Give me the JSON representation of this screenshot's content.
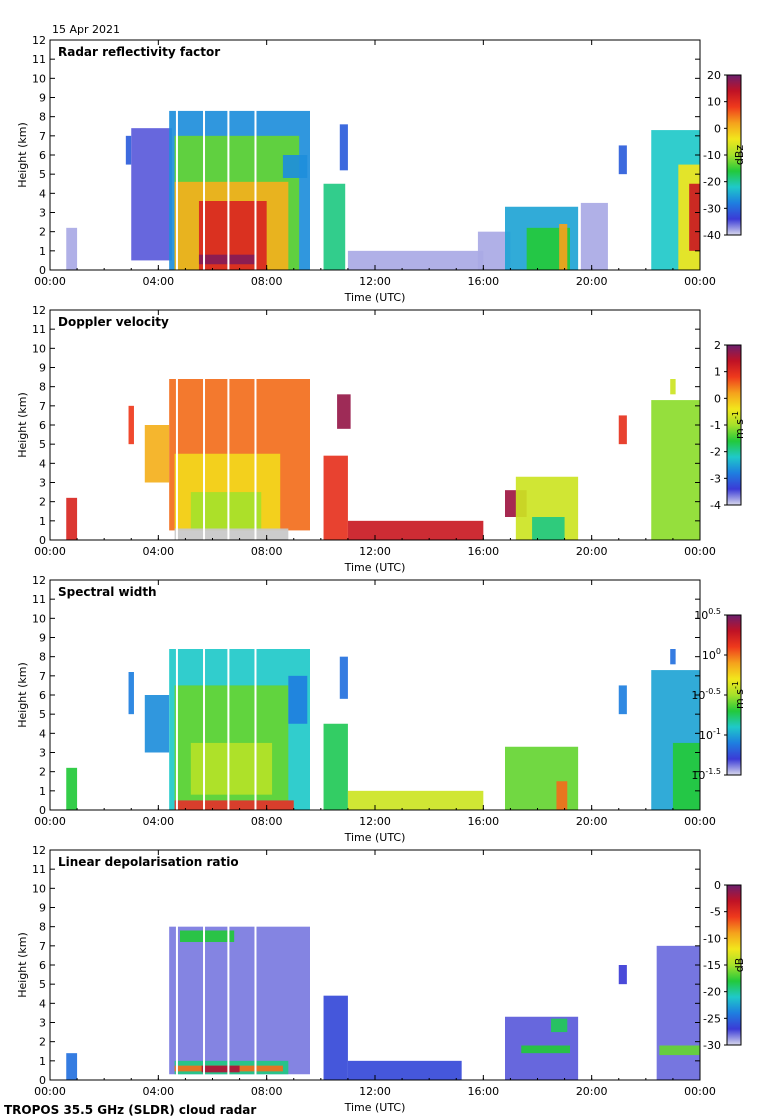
{
  "date_label": "15 Apr 2021",
  "footer": "TROPOS 35.5 GHz (SLDR) cloud radar",
  "colors": {
    "jet": [
      "#d8d8ec",
      "#3b3bd6",
      "#1e7fe0",
      "#1fc9c9",
      "#23c93a",
      "#a6e12a",
      "#f2e61c",
      "#f5a21c",
      "#ef3a1c",
      "#c01225",
      "#6b1f6d"
    ],
    "rain": "#c8c8c8"
  },
  "chart_data": [
    {
      "type": "heatmap",
      "title": "Radar reflectivity factor",
      "xlabel": "Time (UTC)",
      "ylabel": "Height (km)",
      "xlim": [
        0,
        24
      ],
      "ylim": [
        0,
        12
      ],
      "xticks": [
        "00:00",
        "04:00",
        "08:00",
        "12:00",
        "16:00",
        "20:00",
        "00:00"
      ],
      "yticks": [
        "0",
        "1",
        "2",
        "3",
        "4",
        "5",
        "6",
        "7",
        "8",
        "9",
        "10",
        "11",
        "12"
      ],
      "colorbar": {
        "label": "dBz",
        "ticks": [
          "20",
          "10",
          "0",
          "-10",
          "-20",
          "-30",
          "-40"
        ],
        "range": [
          -40,
          20
        ],
        "scale": "linear"
      },
      "regions": [
        {
          "t0": 0.6,
          "t1": 1.0,
          "h0": 0,
          "h1": 2.2,
          "v": 0.03
        },
        {
          "t0": 2.8,
          "t1": 3.0,
          "h0": 5.5,
          "h1": 7.0,
          "v": 0.15
        },
        {
          "t0": 3.0,
          "t1": 4.5,
          "h0": 0.5,
          "h1": 7.4,
          "v": 0.08
        },
        {
          "t0": 4.4,
          "t1": 9.6,
          "h0": 0,
          "h1": 8.3,
          "v": 0.22
        },
        {
          "t0": 4.6,
          "t1": 9.2,
          "h0": 0,
          "h1": 7.0,
          "v": 0.45
        },
        {
          "t0": 4.6,
          "t1": 8.8,
          "h0": 0,
          "h1": 4.6,
          "v": 0.68
        },
        {
          "t0": 5.5,
          "t1": 8.0,
          "h0": 0,
          "h1": 3.6,
          "v": 0.85
        },
        {
          "t0": 5.5,
          "t1": 7.6,
          "h0": 0.3,
          "h1": 0.8,
          "v": 0.97
        },
        {
          "t0": 8.6,
          "t1": 9.5,
          "h0": 4.8,
          "h1": 6.0,
          "v": 0.22
        },
        {
          "t0": 10.1,
          "t1": 10.9,
          "h0": 0,
          "h1": 4.5,
          "v": 0.35
        },
        {
          "t0": 10.7,
          "t1": 11.0,
          "h0": 5.2,
          "h1": 7.6,
          "v": 0.15
        },
        {
          "t0": 11.0,
          "t1": 16.0,
          "h0": 0,
          "h1": 1.0,
          "v": 0.03
        },
        {
          "t0": 15.8,
          "t1": 17.0,
          "h0": 0,
          "h1": 2.0,
          "v": 0.03
        },
        {
          "t0": 16.8,
          "t1": 19.5,
          "h0": 0,
          "h1": 3.3,
          "v": 0.25
        },
        {
          "t0": 17.6,
          "t1": 19.2,
          "h0": 0,
          "h1": 2.2,
          "v": 0.4
        },
        {
          "t0": 18.8,
          "t1": 19.1,
          "h0": 0,
          "h1": 2.4,
          "v": 0.7
        },
        {
          "t0": 19.6,
          "t1": 20.6,
          "h0": 0,
          "h1": 3.5,
          "v": 0.03
        },
        {
          "t0": 21.0,
          "t1": 21.3,
          "h0": 5.0,
          "h1": 6.5,
          "v": 0.15
        },
        {
          "t0": 22.2,
          "t1": 24.0,
          "h0": 0,
          "h1": 7.3,
          "v": 0.3
        },
        {
          "t0": 23.2,
          "t1": 24.0,
          "h0": 0,
          "h1": 5.5,
          "v": 0.6
        },
        {
          "t0": 23.6,
          "t1": 24.0,
          "h0": 1.0,
          "h1": 4.5,
          "v": 0.88
        }
      ]
    },
    {
      "type": "heatmap",
      "title": "Doppler velocity",
      "xlabel": "Time (UTC)",
      "ylabel": "Height (km)",
      "xlim": [
        0,
        24
      ],
      "ylim": [
        0,
        12
      ],
      "xticks": [
        "00:00",
        "04:00",
        "08:00",
        "12:00",
        "16:00",
        "20:00",
        "00:00"
      ],
      "yticks": [
        "0",
        "1",
        "2",
        "3",
        "4",
        "5",
        "6",
        "7",
        "8",
        "9",
        "10",
        "11",
        "12"
      ],
      "colorbar": {
        "label": "m s-1",
        "ticks": [
          "2",
          "1",
          "0",
          "-1",
          "-2",
          "-3",
          "-4"
        ],
        "range": [
          -4,
          2
        ],
        "scale": "linear"
      },
      "regions": [
        {
          "t0": 0.6,
          "t1": 1.0,
          "h0": 0,
          "h1": 2.2,
          "v": 0.85
        },
        {
          "t0": 2.9,
          "t1": 3.1,
          "h0": 5.0,
          "h1": 7.0,
          "v": 0.8
        },
        {
          "t0": 3.5,
          "t1": 4.4,
          "h0": 3.0,
          "h1": 6.0,
          "v": 0.68
        },
        {
          "t0": 4.4,
          "t1": 9.6,
          "h0": 0.5,
          "h1": 8.4,
          "v": 0.75
        },
        {
          "t0": 4.6,
          "t1": 8.5,
          "h0": 0.5,
          "h1": 4.5,
          "v": 0.62
        },
        {
          "t0": 5.2,
          "t1": 7.8,
          "h0": 0.5,
          "h1": 2.5,
          "v": 0.5
        },
        {
          "t0": 4.6,
          "t1": 8.8,
          "h0": 0,
          "h1": 0.6,
          "v": 0.0
        },
        {
          "t0": 10.1,
          "t1": 11.0,
          "h0": 0,
          "h1": 4.4,
          "v": 0.82
        },
        {
          "t0": 10.6,
          "t1": 11.1,
          "h0": 5.8,
          "h1": 7.6,
          "v": 0.95
        },
        {
          "t0": 11.0,
          "t1": 16.0,
          "h0": 0,
          "h1": 1.0,
          "v": 0.88
        },
        {
          "t0": 16.8,
          "t1": 17.6,
          "h0": 1.2,
          "h1": 2.6,
          "v": 0.94
        },
        {
          "t0": 17.2,
          "t1": 19.5,
          "h0": 0,
          "h1": 3.3,
          "v": 0.55
        },
        {
          "t0": 17.8,
          "t1": 19.0,
          "h0": 0,
          "h1": 1.2,
          "v": 0.35
        },
        {
          "t0": 21.0,
          "t1": 21.3,
          "h0": 5.0,
          "h1": 6.5,
          "v": 0.82
        },
        {
          "t0": 22.2,
          "t1": 24.0,
          "h0": 0,
          "h1": 7.3,
          "v": 0.48
        },
        {
          "t0": 22.9,
          "t1": 23.1,
          "h0": 7.6,
          "h1": 8.4,
          "v": 0.55
        }
      ]
    },
    {
      "type": "heatmap",
      "title": "Spectral width",
      "xlabel": "Time (UTC)",
      "ylabel": "Height (km)",
      "xlim": [
        0,
        24
      ],
      "ylim": [
        0,
        12
      ],
      "xticks": [
        "00:00",
        "04:00",
        "08:00",
        "12:00",
        "16:00",
        "20:00",
        "00:00"
      ],
      "yticks": [
        "0",
        "1",
        "2",
        "3",
        "4",
        "5",
        "6",
        "7",
        "8",
        "9",
        "10",
        "11",
        "12"
      ],
      "colorbar": {
        "label": "m s-1",
        "ticks": [
          "10^0.5",
          "10^0",
          "10^-0.5",
          "10^-1",
          "10^-1.5"
        ],
        "range": [
          -1.5,
          0.5
        ],
        "scale": "log10"
      },
      "regions": [
        {
          "t0": 0.6,
          "t1": 1.0,
          "h0": 0,
          "h1": 2.2,
          "v": 0.4
        },
        {
          "t0": 2.9,
          "t1": 3.1,
          "h0": 5.0,
          "h1": 7.2,
          "v": 0.2
        },
        {
          "t0": 3.5,
          "t1": 4.4,
          "h0": 3.0,
          "h1": 6.0,
          "v": 0.22
        },
        {
          "t0": 4.4,
          "t1": 9.6,
          "h0": 0,
          "h1": 8.4,
          "v": 0.3
        },
        {
          "t0": 4.6,
          "t1": 8.8,
          "h0": 0.5,
          "h1": 6.5,
          "v": 0.45
        },
        {
          "t0": 5.2,
          "t1": 8.2,
          "h0": 0.8,
          "h1": 3.5,
          "v": 0.52
        },
        {
          "t0": 4.6,
          "t1": 9.0,
          "h0": 0,
          "h1": 0.5,
          "v": 0.82
        },
        {
          "t0": 8.8,
          "t1": 9.5,
          "h0": 4.5,
          "h1": 7.0,
          "v": 0.2
        },
        {
          "t0": 10.1,
          "t1": 11.0,
          "h0": 0,
          "h1": 4.5,
          "v": 0.38
        },
        {
          "t0": 10.7,
          "t1": 11.0,
          "h0": 5.8,
          "h1": 8.0,
          "v": 0.18
        },
        {
          "t0": 11.0,
          "t1": 16.0,
          "h0": 0,
          "h1": 1.0,
          "v": 0.55
        },
        {
          "t0": 16.8,
          "t1": 19.5,
          "h0": 0,
          "h1": 3.3,
          "v": 0.45
        },
        {
          "t0": 18.7,
          "t1": 19.1,
          "h0": 0,
          "h1": 1.5,
          "v": 0.75
        },
        {
          "t0": 21.0,
          "t1": 21.3,
          "h0": 5.0,
          "h1": 6.5,
          "v": 0.2
        },
        {
          "t0": 22.2,
          "t1": 24.0,
          "h0": 0,
          "h1": 7.3,
          "v": 0.25
        },
        {
          "t0": 23.0,
          "t1": 24.0,
          "h0": 0,
          "h1": 3.5,
          "v": 0.4
        },
        {
          "t0": 22.9,
          "t1": 23.1,
          "h0": 7.6,
          "h1": 8.4,
          "v": 0.18
        }
      ]
    },
    {
      "type": "heatmap",
      "title": "Linear depolarisation ratio",
      "xlabel": "Time (UTC)",
      "ylabel": "Height (km)",
      "xlim": [
        0,
        24
      ],
      "ylim": [
        0,
        12
      ],
      "xticks": [
        "00:00",
        "04:00",
        "08:00",
        "12:00",
        "16:00",
        "20:00",
        "00:00"
      ],
      "yticks": [
        "0",
        "1",
        "2",
        "3",
        "4",
        "5",
        "6",
        "7",
        "8",
        "9",
        "10",
        "11",
        "12"
      ],
      "colorbar": {
        "label": "dB",
        "ticks": [
          "0",
          "-5",
          "-10",
          "-15",
          "-20",
          "-25",
          "-30"
        ],
        "range": [
          -30,
          0
        ],
        "scale": "linear"
      },
      "regions": [
        {
          "t0": 0.6,
          "t1": 1.0,
          "h0": 0,
          "h1": 1.4,
          "v": 0.18
        },
        {
          "t0": 4.4,
          "t1": 9.6,
          "h0": 0.3,
          "h1": 8.0,
          "v": 0.06
        },
        {
          "t0": 4.8,
          "t1": 6.8,
          "h0": 7.2,
          "h1": 7.8,
          "v": 0.4
        },
        {
          "t0": 4.6,
          "t1": 8.8,
          "h0": 0.3,
          "h1": 1.0,
          "v": 0.35
        },
        {
          "t0": 4.6,
          "t1": 8.6,
          "h0": 0.45,
          "h1": 0.75,
          "v": 0.75
        },
        {
          "t0": 5.6,
          "t1": 7.0,
          "h0": 0.4,
          "h1": 0.75,
          "v": 0.93
        },
        {
          "t0": 10.1,
          "t1": 11.0,
          "h0": 0,
          "h1": 4.4,
          "v": 0.12
        },
        {
          "t0": 11.0,
          "t1": 15.2,
          "h0": 0,
          "h1": 1.0,
          "v": 0.12
        },
        {
          "t0": 16.8,
          "t1": 19.5,
          "h0": 0,
          "h1": 3.3,
          "v": 0.08
        },
        {
          "t0": 17.4,
          "t1": 19.2,
          "h0": 1.4,
          "h1": 1.8,
          "v": 0.4
        },
        {
          "t0": 18.5,
          "t1": 19.1,
          "h0": 2.5,
          "h1": 3.2,
          "v": 0.38
        },
        {
          "t0": 21.0,
          "t1": 21.3,
          "h0": 5.0,
          "h1": 6.0,
          "v": 0.1
        },
        {
          "t0": 22.4,
          "t1": 24.0,
          "h0": 0,
          "h1": 7.0,
          "v": 0.07
        },
        {
          "t0": 22.5,
          "t1": 24.0,
          "h0": 1.3,
          "h1": 1.8,
          "v": 0.45
        }
      ]
    }
  ]
}
